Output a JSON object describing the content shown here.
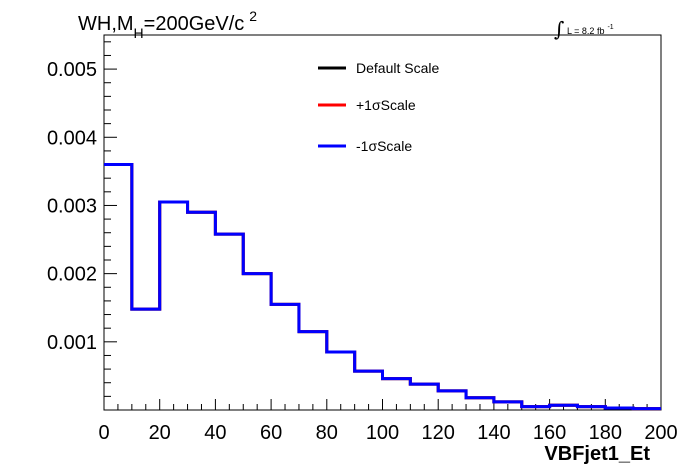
{
  "chart_data": {
    "type": "line",
    "title_prefix": "WH,M",
    "title_subscript": "H",
    "title_main": "=200GeV/c",
    "title_superscript": "2",
    "luminosity_label": "L = 8.2 fb",
    "luminosity_superscript": "-1",
    "xlabel": "VBFjet1_Et",
    "ylabel": "",
    "xlim": [
      0,
      200
    ],
    "ylim": [
      0,
      0.0055
    ],
    "x_ticks": [
      0,
      20,
      40,
      60,
      80,
      100,
      120,
      140,
      160,
      180,
      200
    ],
    "x_tick_labels": [
      "0",
      "20",
      "40",
      "60",
      "80",
      "100",
      "120",
      "140",
      "160",
      "180",
      "200"
    ],
    "y_ticks": [
      0.001,
      0.002,
      0.003,
      0.004,
      0.005
    ],
    "y_tick_labels": [
      "0.001",
      "0.002",
      "0.003",
      "0.004",
      "0.005"
    ],
    "bin_edges": [
      0,
      10,
      20,
      30,
      40,
      50,
      60,
      70,
      80,
      90,
      100,
      110,
      120,
      130,
      140,
      150,
      160,
      170,
      180,
      190,
      200
    ],
    "legend_position": "top-center",
    "series": [
      {
        "name": "Default Scale",
        "color": "#000000",
        "values": [
          0.0036,
          0.00148,
          0.00305,
          0.0029,
          0.00258,
          0.002,
          0.00155,
          0.00115,
          0.00085,
          0.00057,
          0.00046,
          0.00038,
          0.00028,
          0.00018,
          0.00012,
          5e-05,
          7e-05,
          5e-05,
          3e-05,
          2e-05
        ]
      },
      {
        "name": "+1σScale",
        "color": "#ff0000",
        "values": [
          0.0036,
          0.00148,
          0.00305,
          0.0029,
          0.00258,
          0.002,
          0.00155,
          0.00115,
          0.00085,
          0.00057,
          0.00046,
          0.00038,
          0.00028,
          0.00018,
          0.00012,
          5e-05,
          7e-05,
          5e-05,
          3e-05,
          2e-05
        ]
      },
      {
        "name": "-1σScale",
        "color": "#0000ff",
        "values": [
          0.0036,
          0.00148,
          0.00305,
          0.0029,
          0.00258,
          0.002,
          0.00155,
          0.00115,
          0.00085,
          0.00057,
          0.00046,
          0.00038,
          0.00028,
          0.00018,
          0.00012,
          5e-05,
          7e-05,
          5e-05,
          3e-05,
          2e-05
        ]
      }
    ]
  }
}
